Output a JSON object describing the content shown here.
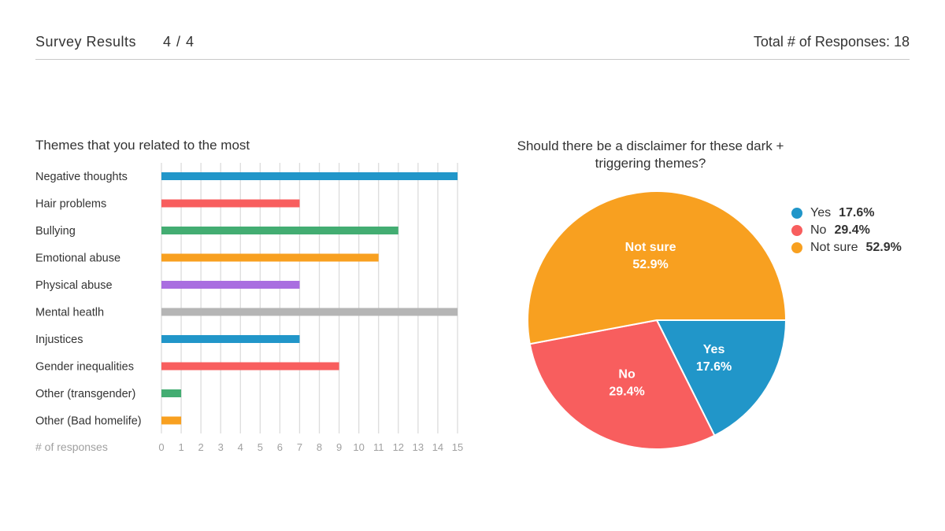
{
  "header": {
    "title": "Survey Results",
    "page": "4 / 4",
    "total": "Total # of Responses: 18"
  },
  "chart_data": [
    {
      "type": "bar",
      "orientation": "horizontal",
      "title": "Themes that you related to the most",
      "xlabel": "# of responses",
      "categories": [
        "Negative thoughts",
        "Hair problems",
        "Bullying",
        "Emotional abuse",
        "Physical abuse",
        "Mental heatlh",
        "Injustices",
        "Gender inequalities",
        "Other (transgender)",
        "Other (Bad homelife)"
      ],
      "values": [
        15,
        7,
        12,
        11,
        7,
        15,
        7,
        9,
        1,
        1
      ],
      "colors": [
        "#2196c9",
        "#f85e5e",
        "#43ad72",
        "#f8a020",
        "#a96ee0",
        "#b5b5b5",
        "#2196c9",
        "#f85e5e",
        "#43ad72",
        "#f8a020"
      ],
      "xticks": [
        "0",
        "1",
        "2",
        "3",
        "4",
        "5",
        "6",
        "7",
        "8",
        "9",
        "10",
        "11",
        "12",
        "13",
        "14",
        "15"
      ],
      "xlim": [
        0,
        15
      ],
      "grid": true
    },
    {
      "type": "pie",
      "title": "Should there be a disclaimer for these dark + triggering themes?",
      "slices": [
        {
          "label": "Yes",
          "value": 17.6,
          "value_label": "17.6%",
          "color": "#2196c9"
        },
        {
          "label": "No",
          "value": 29.4,
          "value_label": "29.4%",
          "color": "#f85e5e"
        },
        {
          "label": "Not sure",
          "value": 52.9,
          "value_label": "52.9%",
          "color": "#f8a020"
        }
      ],
      "legend_position": "right"
    }
  ]
}
